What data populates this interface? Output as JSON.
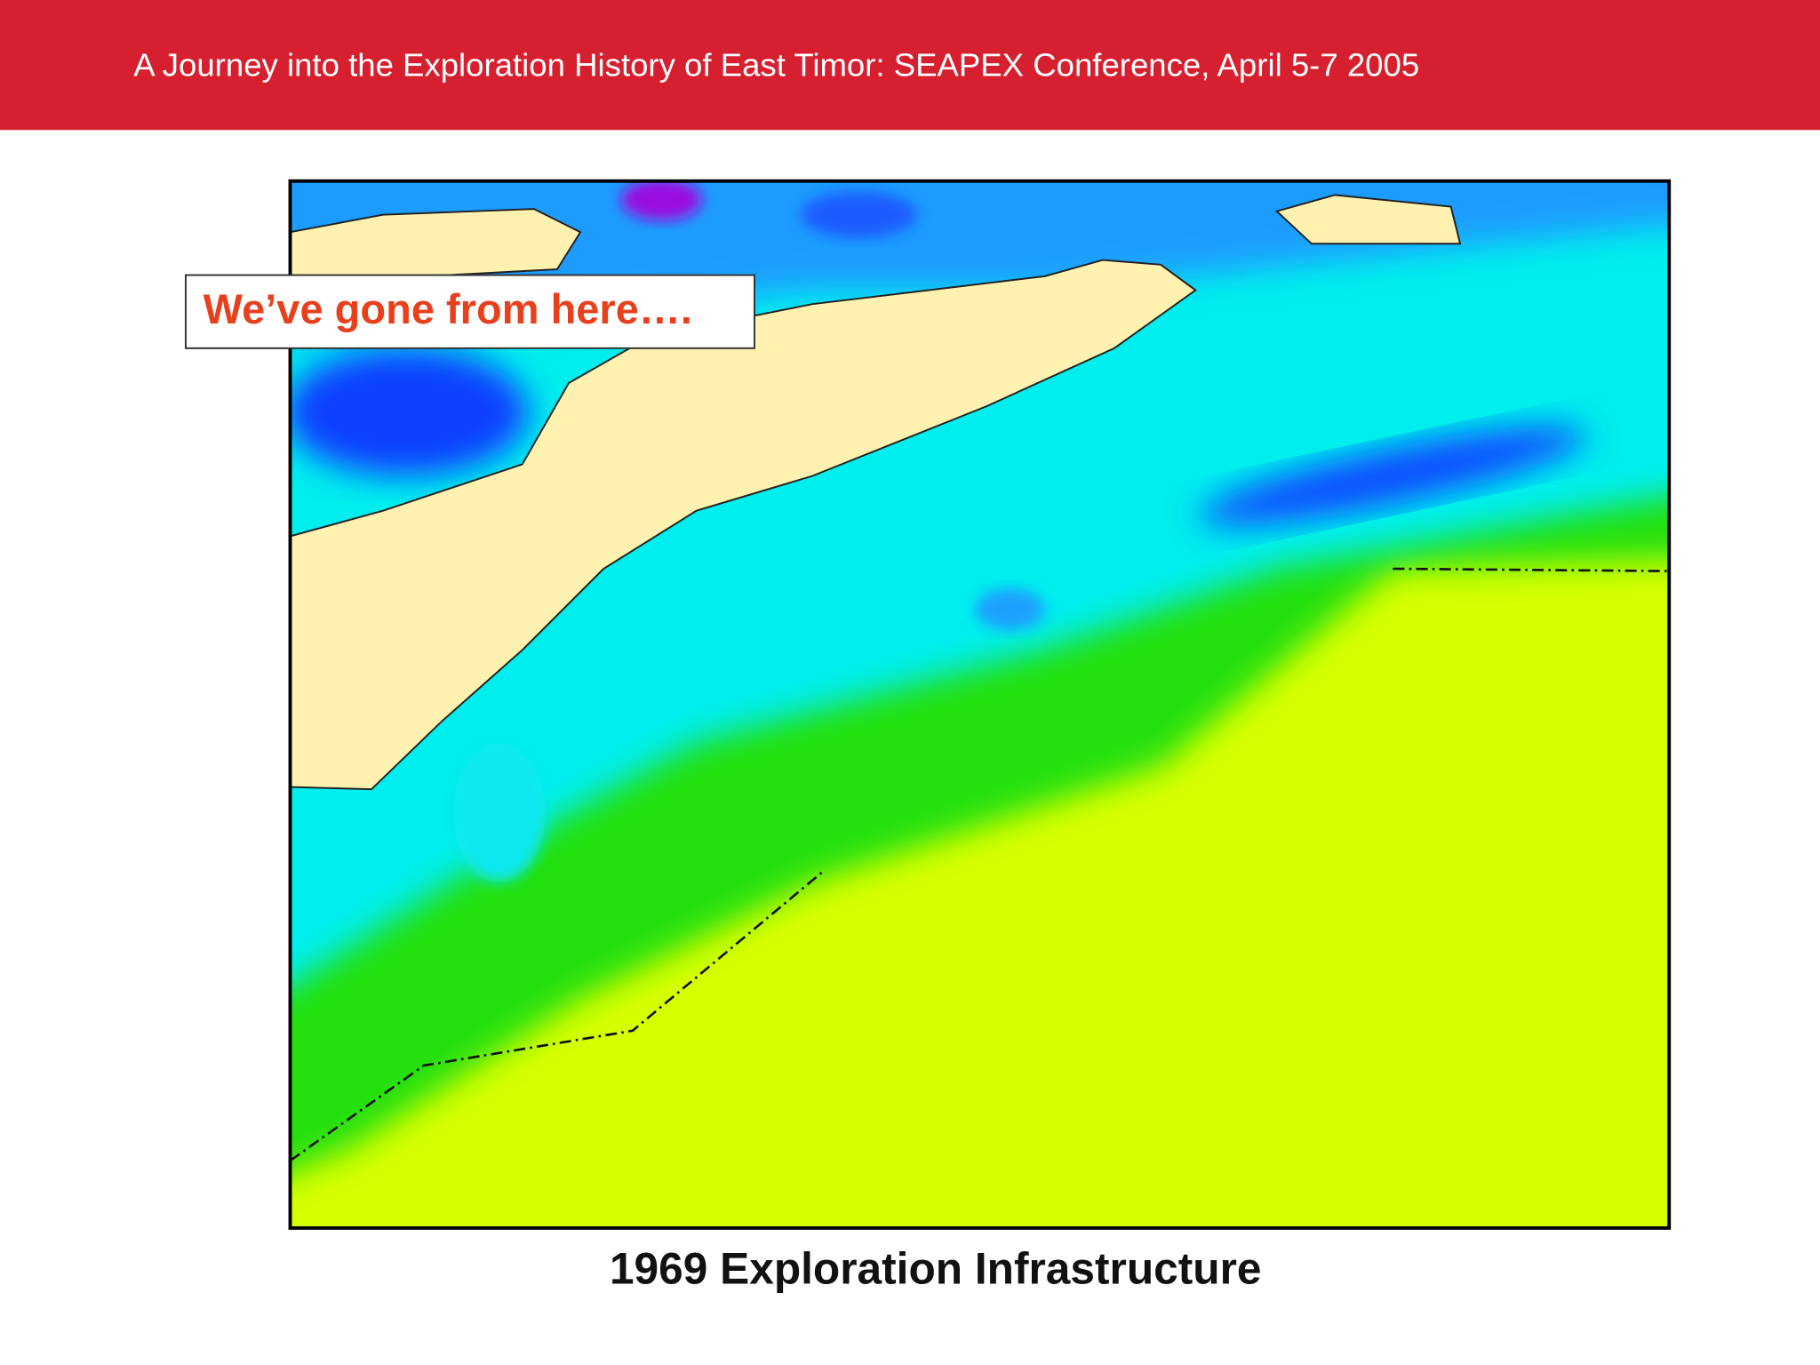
{
  "header": {
    "title": "A Journey into the Exploration History of East Timor:  SEAPEX Conference, April 5-7 2005"
  },
  "callout": {
    "text": "We’ve gone from here…."
  },
  "caption": {
    "text": "1969 Exploration Infrastructure"
  }
}
